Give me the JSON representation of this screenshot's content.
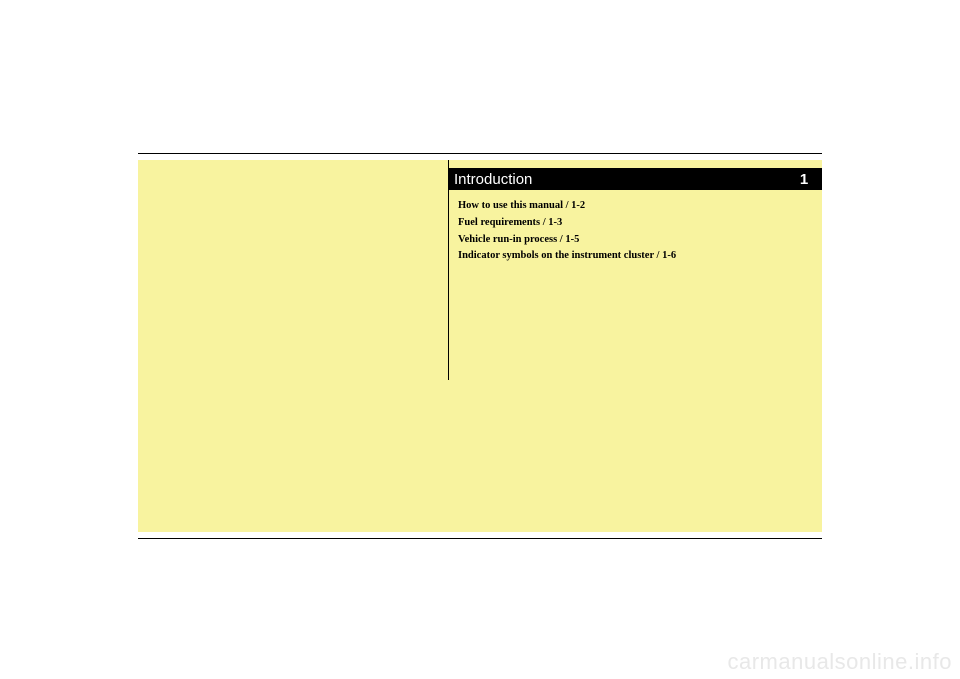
{
  "chapter": {
    "title": "Introduction",
    "number": "1"
  },
  "toc": {
    "items": [
      "How to use this manual / 1-2",
      "Fuel requirements / 1-3",
      "Vehicle run-in process / 1-5",
      "Indicator symbols on the instrument cluster / 1-6"
    ]
  },
  "watermark": "carmanualsonline.info",
  "colors": {
    "panel_background": "#f8f39f",
    "header_background": "#000000",
    "header_text": "#ffffff",
    "body_text": "#000000",
    "watermark_text": "#e8e8e8",
    "page_background": "#ffffff"
  }
}
